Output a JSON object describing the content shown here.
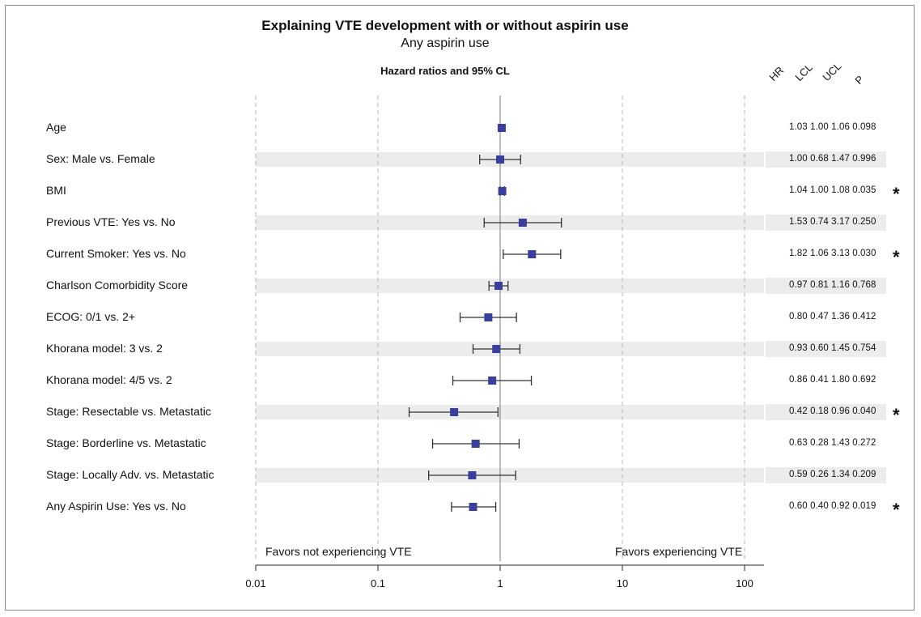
{
  "chart_data": {
    "type": "forest",
    "title": "Explaining VTE development with or without aspirin use",
    "subtitle": "Any aspirin use",
    "panel_title": "Hazard ratios and 95% CL",
    "x_scale": "log",
    "xlim": [
      0.01,
      150
    ],
    "x_ticks": [
      "0.01",
      "0.1",
      "1",
      "10",
      "100"
    ],
    "x_tick_values": [
      0.01,
      0.1,
      1,
      10,
      100
    ],
    "reference_line": 1,
    "favor_left": "Favors not experiencing VTE",
    "favor_right": "Favors experiencing VTE",
    "column_headers": [
      "HR",
      "LCL",
      "UCL",
      "P"
    ],
    "rows": [
      {
        "label": "Age",
        "hr": "1.03",
        "lcl": "1.00",
        "ucl": "1.06",
        "p": "0.098",
        "sig": ""
      },
      {
        "label": "Sex: Male vs. Female",
        "hr": "1.00",
        "lcl": "0.68",
        "ucl": "1.47",
        "p": "0.996",
        "sig": ""
      },
      {
        "label": "BMI",
        "hr": "1.04",
        "lcl": "1.00",
        "ucl": "1.08",
        "p": "0.035",
        "sig": "*"
      },
      {
        "label": "Previous VTE: Yes vs. No",
        "hr": "1.53",
        "lcl": "0.74",
        "ucl": "3.17",
        "p": "0.250",
        "sig": ""
      },
      {
        "label": "Current Smoker: Yes vs. No",
        "hr": "1.82",
        "lcl": "1.06",
        "ucl": "3.13",
        "p": "0.030",
        "sig": "*"
      },
      {
        "label": "Charlson Comorbidity Score",
        "hr": "0.97",
        "lcl": "0.81",
        "ucl": "1.16",
        "p": "0.768",
        "sig": ""
      },
      {
        "label": "ECOG: 0/1 vs. 2+",
        "hr": "0.80",
        "lcl": "0.47",
        "ucl": "1.36",
        "p": "0.412",
        "sig": ""
      },
      {
        "label": "Khorana model: 3 vs. 2",
        "hr": "0.93",
        "lcl": "0.60",
        "ucl": "1.45",
        "p": "0.754",
        "sig": ""
      },
      {
        "label": "Khorana model: 4/5 vs. 2",
        "hr": "0.86",
        "lcl": "0.41",
        "ucl": "1.80",
        "p": "0.692",
        "sig": ""
      },
      {
        "label": "Stage: Resectable vs. Metastatic",
        "hr": "0.42",
        "lcl": "0.18",
        "ucl": "0.96",
        "p": "0.040",
        "sig": "*"
      },
      {
        "label": "Stage: Borderline vs. Metastatic",
        "hr": "0.63",
        "lcl": "0.28",
        "ucl": "1.43",
        "p": "0.272",
        "sig": ""
      },
      {
        "label": "Stage: Locally Adv. vs. Metastatic",
        "hr": "0.59",
        "lcl": "0.26",
        "ucl": "1.34",
        "p": "0.209",
        "sig": ""
      },
      {
        "label": "Any Aspirin Use: Yes vs. No",
        "hr": "0.60",
        "lcl": "0.40",
        "ucl": "0.92",
        "p": "0.019",
        "sig": "*"
      }
    ],
    "colors": {
      "marker": "#3a3f9e",
      "band": "#ececec",
      "grid": "#b5b5b5",
      "whisker": "#333333"
    }
  }
}
